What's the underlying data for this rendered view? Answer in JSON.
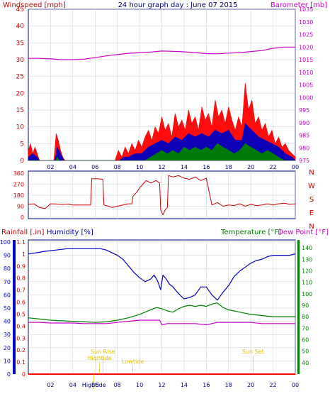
{
  "chart_data": {
    "type": "line",
    "title": "24 hour graph day : June 07 2015",
    "colors": {
      "wind_gust": "#ff0000",
      "wind_avg": "#0000c0",
      "wind_low": "#007f00",
      "barometer": "#cc00cc",
      "direction": "#cc0000",
      "rain": "#ff0000",
      "humidity": "#0000c0",
      "temperature": "#007f00",
      "dewpoint": "#cc00cc",
      "annotation": "#e0c000",
      "grid": "#cccccc",
      "axis_dark": "#000080",
      "axis_green": "#007f00"
    },
    "x_ticks": [
      "02",
      "04",
      "06",
      "08",
      "10",
      "12",
      "14",
      "16",
      "18",
      "20",
      "22",
      "00"
    ],
    "wind_panel": {
      "left_label": "Windspeed [mph]",
      "right_label": "Barometer [mb]",
      "left_ticks": [
        "45",
        "40",
        "35",
        "30",
        "25",
        "20",
        "15",
        "10",
        "5",
        "0"
      ],
      "right_ticks": [
        "1035",
        "1030",
        "1025",
        "1020",
        "1015",
        "1010",
        "1005",
        "1000",
        "995",
        "990",
        "985",
        "980",
        "975"
      ],
      "ylim_left": [
        0,
        45
      ],
      "ylim_right": [
        975,
        1035
      ],
      "barometer": [
        [
          0,
          1015.5
        ],
        [
          1,
          1015.5
        ],
        [
          2,
          1015.3
        ],
        [
          3,
          1015
        ],
        [
          4,
          1015
        ],
        [
          5,
          1015.2
        ],
        [
          6,
          1015.8
        ],
        [
          7,
          1016.5
        ],
        [
          8,
          1017
        ],
        [
          9,
          1017.5
        ],
        [
          10,
          1017.8
        ],
        [
          11,
          1018
        ],
        [
          12,
          1018.4
        ],
        [
          13,
          1018.3
        ],
        [
          14,
          1018.1
        ],
        [
          15,
          1017.8
        ],
        [
          16,
          1017.4
        ],
        [
          17,
          1017.3
        ],
        [
          18,
          1017.6
        ],
        [
          19,
          1017.8
        ],
        [
          20,
          1018.2
        ],
        [
          21,
          1018.6
        ],
        [
          22,
          1019.5
        ],
        [
          23,
          1020
        ],
        [
          24,
          1020
        ]
      ],
      "gust": [
        [
          0,
          3
        ],
        [
          0.2,
          5
        ],
        [
          0.4,
          2
        ],
        [
          0.6,
          4
        ],
        [
          0.8,
          2
        ],
        [
          1,
          0
        ],
        [
          2.3,
          0
        ],
        [
          2.5,
          8
        ],
        [
          2.7,
          6
        ],
        [
          2.9,
          3
        ],
        [
          3.1,
          1
        ],
        [
          3.3,
          0
        ],
        [
          7.8,
          0
        ],
        [
          8.1,
          3
        ],
        [
          8.4,
          1
        ],
        [
          8.7,
          4
        ],
        [
          9,
          2
        ],
        [
          9.3,
          5
        ],
        [
          9.6,
          3
        ],
        [
          9.9,
          6
        ],
        [
          10.2,
          4
        ],
        [
          10.5,
          7
        ],
        [
          10.8,
          9
        ],
        [
          11.1,
          6
        ],
        [
          11.4,
          10
        ],
        [
          11.7,
          8
        ],
        [
          12,
          13
        ],
        [
          12.3,
          9
        ],
        [
          12.6,
          11
        ],
        [
          12.9,
          7
        ],
        [
          13.2,
          14
        ],
        [
          13.5,
          10
        ],
        [
          13.8,
          12
        ],
        [
          14.1,
          9
        ],
        [
          14.4,
          15
        ],
        [
          14.7,
          11
        ],
        [
          15,
          13
        ],
        [
          15.3,
          9
        ],
        [
          15.6,
          16
        ],
        [
          15.9,
          12
        ],
        [
          16.2,
          14
        ],
        [
          16.5,
          10
        ],
        [
          16.8,
          18
        ],
        [
          17.1,
          13
        ],
        [
          17.4,
          15
        ],
        [
          17.7,
          11
        ],
        [
          18,
          16
        ],
        [
          18.3,
          12
        ],
        [
          18.6,
          9
        ],
        [
          18.9,
          13
        ],
        [
          19.2,
          10
        ],
        [
          19.5,
          23
        ],
        [
          19.8,
          15
        ],
        [
          20.1,
          18
        ],
        [
          20.4,
          11
        ],
        [
          20.7,
          13
        ],
        [
          21,
          9
        ],
        [
          21.3,
          11
        ],
        [
          21.6,
          7
        ],
        [
          21.9,
          9
        ],
        [
          22.2,
          5
        ],
        [
          22.5,
          7
        ],
        [
          22.8,
          4
        ],
        [
          23.1,
          5
        ],
        [
          23.4,
          3
        ],
        [
          23.7,
          2
        ],
        [
          24,
          1
        ]
      ],
      "avg": [
        [
          0,
          1
        ],
        [
          0.4,
          2
        ],
        [
          0.8,
          1
        ],
        [
          1,
          0
        ],
        [
          2.4,
          0
        ],
        [
          2.6,
          4
        ],
        [
          2.9,
          2
        ],
        [
          3.2,
          0
        ],
        [
          8.2,
          0
        ],
        [
          8.6,
          1
        ],
        [
          9,
          1
        ],
        [
          9.6,
          2
        ],
        [
          10.2,
          2
        ],
        [
          10.8,
          4
        ],
        [
          11.4,
          5
        ],
        [
          12,
          6
        ],
        [
          12.6,
          5
        ],
        [
          13.2,
          7
        ],
        [
          13.8,
          6
        ],
        [
          14.4,
          8
        ],
        [
          15,
          7
        ],
        [
          15.6,
          8
        ],
        [
          16.2,
          7
        ],
        [
          16.8,
          9
        ],
        [
          17.4,
          8
        ],
        [
          18,
          9
        ],
        [
          18.6,
          6
        ],
        [
          19.2,
          6
        ],
        [
          19.5,
          11
        ],
        [
          20.1,
          9
        ],
        [
          20.7,
          7
        ],
        [
          21.3,
          6
        ],
        [
          21.9,
          5
        ],
        [
          22.5,
          4
        ],
        [
          23.1,
          2
        ],
        [
          23.7,
          1
        ],
        [
          24,
          0
        ]
      ],
      "low": [
        [
          0,
          0
        ],
        [
          2.5,
          0
        ],
        [
          2.6,
          1
        ],
        [
          2.8,
          0
        ],
        [
          10.5,
          0
        ],
        [
          11,
          1
        ],
        [
          11.5,
          2
        ],
        [
          12,
          3
        ],
        [
          12.5,
          2
        ],
        [
          13,
          3
        ],
        [
          13.5,
          2
        ],
        [
          14,
          4
        ],
        [
          14.5,
          3
        ],
        [
          15,
          4
        ],
        [
          15.5,
          3
        ],
        [
          16,
          4
        ],
        [
          16.5,
          3
        ],
        [
          17,
          5
        ],
        [
          17.5,
          4
        ],
        [
          18,
          3
        ],
        [
          18.5,
          2
        ],
        [
          19,
          3
        ],
        [
          19.5,
          5
        ],
        [
          20,
          4
        ],
        [
          20.5,
          3
        ],
        [
          21,
          2
        ],
        [
          21.5,
          3
        ],
        [
          22,
          2
        ],
        [
          22.5,
          1
        ],
        [
          23,
          0
        ],
        [
          24,
          0
        ]
      ]
    },
    "direction_panel": {
      "left_ticks": [
        "360",
        "270",
        "180",
        "90",
        "0"
      ],
      "right_labels": [
        "N",
        "W",
        "S",
        "E",
        "N"
      ],
      "ylim": [
        0,
        360
      ],
      "direction": [
        [
          0,
          105
        ],
        [
          0.5,
          110
        ],
        [
          1,
          80
        ],
        [
          1.5,
          70
        ],
        [
          2,
          110
        ],
        [
          2.5,
          108
        ],
        [
          3,
          105
        ],
        [
          3.5,
          108
        ],
        [
          4,
          100
        ],
        [
          4.5,
          100
        ],
        [
          5,
          100
        ],
        [
          5.6,
          100
        ],
        [
          5.7,
          315
        ],
        [
          6.2,
          315
        ],
        [
          6.7,
          310
        ],
        [
          6.8,
          100
        ],
        [
          7.2,
          90
        ],
        [
          7.5,
          80
        ],
        [
          8,
          90
        ],
        [
          8.5,
          100
        ],
        [
          9,
          110
        ],
        [
          9.3,
          110
        ],
        [
          9.4,
          170
        ],
        [
          9.8,
          210
        ],
        [
          10,
          240
        ],
        [
          10.3,
          270
        ],
        [
          10.6,
          300
        ],
        [
          11,
          280
        ],
        [
          11.5,
          300
        ],
        [
          11.8,
          280
        ],
        [
          11.9,
          60
        ],
        [
          12.1,
          20
        ],
        [
          12.3,
          60
        ],
        [
          12.5,
          80
        ],
        [
          12.6,
          340
        ],
        [
          13,
          330
        ],
        [
          13.5,
          340
        ],
        [
          14,
          320
        ],
        [
          14.5,
          310
        ],
        [
          15,
          330
        ],
        [
          15.5,
          300
        ],
        [
          16,
          320
        ],
        [
          16.5,
          100
        ],
        [
          17,
          120
        ],
        [
          17.5,
          90
        ],
        [
          18,
          100
        ],
        [
          18.5,
          95
        ],
        [
          19,
          110
        ],
        [
          19.5,
          90
        ],
        [
          20,
          105
        ],
        [
          20.5,
          95
        ],
        [
          21,
          100
        ],
        [
          21.5,
          110
        ],
        [
          22,
          100
        ],
        [
          22.5,
          110
        ],
        [
          23,
          115
        ],
        [
          23.5,
          105
        ],
        [
          24,
          110
        ]
      ]
    },
    "lower_panel": {
      "rainfall_label": "Rainfall [.in]",
      "humidity_label": "Humidity [%]",
      "temperature_label": "Temperature [°F]",
      "dewpoint_label": "Dew Point [°F]",
      "left_ticks": [
        "100",
        "90",
        "80",
        "70",
        "60",
        "50",
        "40",
        "30",
        "20",
        "10",
        "0"
      ],
      "left_range": [
        0,
        100
      ],
      "rain_ticks": [
        "1.1",
        "1",
        "0.9",
        "0.8",
        "0.7",
        "0.6",
        "0.5",
        "0.4",
        "0.3",
        "0.2",
        "0.1",
        "0"
      ],
      "rain_range": [
        0,
        1.1
      ],
      "right_ticks": [
        "140",
        "130",
        "120",
        "110",
        "100",
        "90",
        "80",
        "70",
        "60",
        "50",
        "40"
      ],
      "right_range": [
        30,
        145
      ],
      "humidity": [
        [
          0,
          91
        ],
        [
          0.8,
          92
        ],
        [
          1.5,
          93
        ],
        [
          2.5,
          94
        ],
        [
          3.5,
          95
        ],
        [
          4.5,
          95
        ],
        [
          5.5,
          95
        ],
        [
          6.5,
          95
        ],
        [
          7,
          94
        ],
        [
          7.5,
          92
        ],
        [
          8,
          90
        ],
        [
          8.5,
          87
        ],
        [
          9,
          82
        ],
        [
          9.5,
          77
        ],
        [
          10,
          73
        ],
        [
          10.5,
          70
        ],
        [
          11,
          72
        ],
        [
          11.3,
          75
        ],
        [
          11.6,
          71
        ],
        [
          11.9,
          64
        ],
        [
          12.1,
          75
        ],
        [
          12.4,
          72
        ],
        [
          12.7,
          68
        ],
        [
          13,
          66
        ],
        [
          13.5,
          61
        ],
        [
          14,
          57
        ],
        [
          14.5,
          58
        ],
        [
          15,
          60
        ],
        [
          15.5,
          66
        ],
        [
          16,
          66
        ],
        [
          16.5,
          60
        ],
        [
          17,
          56
        ],
        [
          17.5,
          62
        ],
        [
          18,
          67
        ],
        [
          18.5,
          74
        ],
        [
          19,
          78
        ],
        [
          19.5,
          81
        ],
        [
          20,
          84
        ],
        [
          20.5,
          86
        ],
        [
          21,
          87
        ],
        [
          21.5,
          89
        ],
        [
          22,
          90
        ],
        [
          22.5,
          90
        ],
        [
          23,
          90
        ],
        [
          23.5,
          90
        ],
        [
          24,
          91
        ]
      ],
      "temperature": [
        [
          0,
          79
        ],
        [
          1,
          78
        ],
        [
          2,
          77
        ],
        [
          3,
          76.5
        ],
        [
          4,
          76
        ],
        [
          5,
          75.5
        ],
        [
          6,
          75
        ],
        [
          7,
          75.5
        ],
        [
          8,
          77
        ],
        [
          9,
          79
        ],
        [
          10,
          82
        ],
        [
          11,
          86
        ],
        [
          11.5,
          88
        ],
        [
          12,
          87
        ],
        [
          12.5,
          85
        ],
        [
          13,
          84
        ],
        [
          13.5,
          87
        ],
        [
          14,
          89
        ],
        [
          14.5,
          90
        ],
        [
          15,
          89
        ],
        [
          15.5,
          90
        ],
        [
          16,
          89
        ],
        [
          16.5,
          91
        ],
        [
          17,
          92
        ],
        [
          17.5,
          88
        ],
        [
          18,
          86
        ],
        [
          18.5,
          85
        ],
        [
          19,
          84
        ],
        [
          19.5,
          83
        ],
        [
          20,
          82
        ],
        [
          21,
          81
        ],
        [
          22,
          80
        ],
        [
          23,
          80
        ],
        [
          24,
          80
        ]
      ],
      "dewpoint": [
        [
          0,
          75
        ],
        [
          1,
          75
        ],
        [
          2,
          74.5
        ],
        [
          3,
          74.5
        ],
        [
          4,
          74.5
        ],
        [
          5,
          74
        ],
        [
          6,
          74
        ],
        [
          7,
          74
        ],
        [
          8,
          75
        ],
        [
          9,
          76
        ],
        [
          10,
          77
        ],
        [
          11,
          77
        ],
        [
          11.8,
          77
        ],
        [
          12,
          73
        ],
        [
          12.5,
          74
        ],
        [
          13,
          74
        ],
        [
          14,
          74
        ],
        [
          15,
          74
        ],
        [
          16,
          73
        ],
        [
          16.5,
          74
        ],
        [
          17,
          75
        ],
        [
          18,
          75
        ],
        [
          19,
          75
        ],
        [
          20,
          75
        ],
        [
          21,
          74
        ],
        [
          22,
          74
        ],
        [
          23,
          74
        ],
        [
          24,
          74
        ]
      ],
      "rain": [
        [
          0,
          0
        ],
        [
          24,
          0
        ]
      ],
      "annotations": [
        {
          "text": "Sun Rise",
          "hour": 6.7
        },
        {
          "text": "Sun Set",
          "hour": 20.2
        },
        {
          "text": "Hightide",
          "hour": 6.4
        },
        {
          "text": "Hightide",
          "hour": 5.9
        },
        {
          "text": "Lowtide",
          "hour": 9.4
        }
      ]
    }
  }
}
